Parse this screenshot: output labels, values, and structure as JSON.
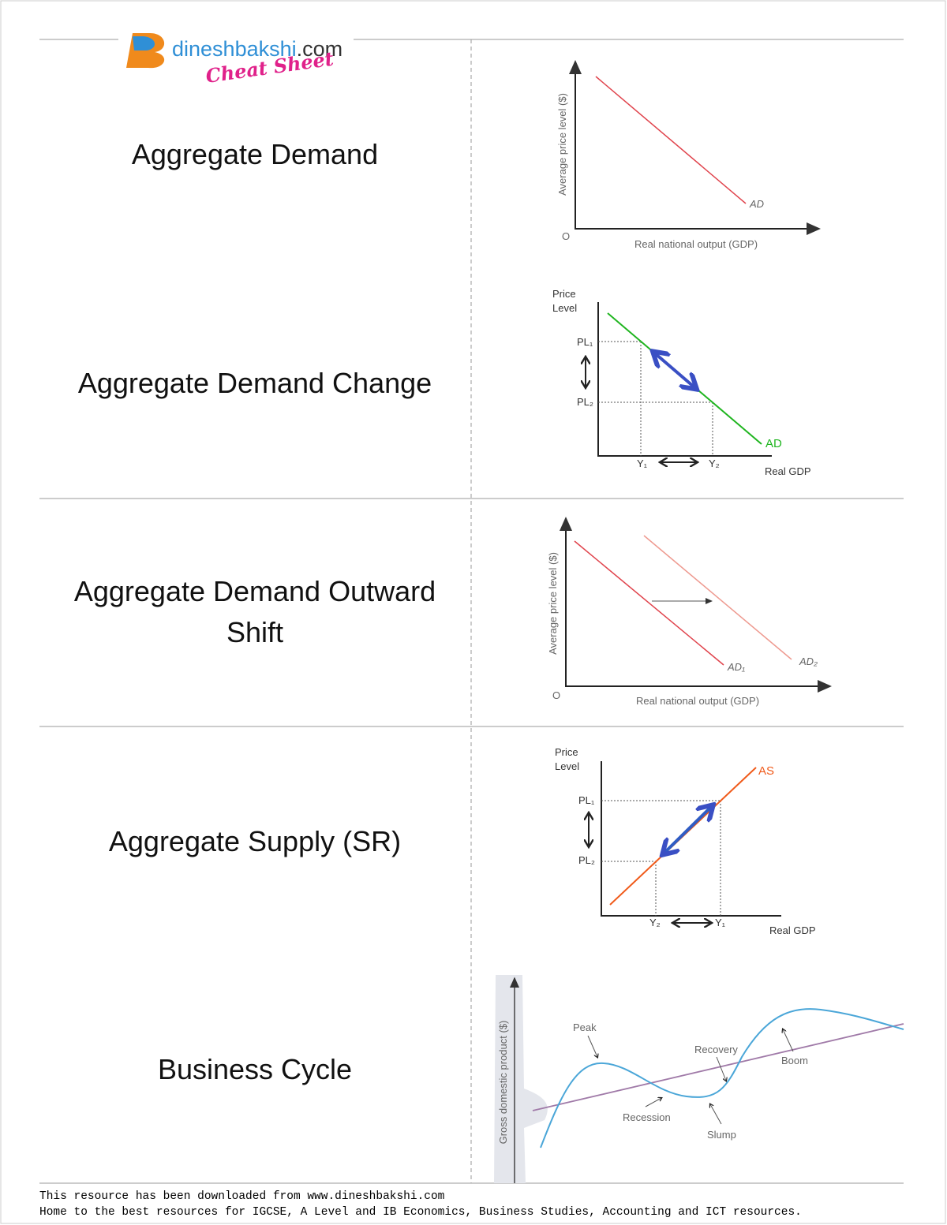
{
  "header": {
    "brand": "dineshbakshi",
    "domain": ".com",
    "tagline": "Cheat Sheet"
  },
  "cards": [
    {
      "term_lines": [
        "Aggregate Demand"
      ],
      "diagram": {
        "y_label": "Average price level ($)",
        "x_label": "Real national output (GDP)",
        "origin": "O",
        "curve_label": "AD"
      }
    },
    {
      "term_lines": [
        "Aggregate Demand Change"
      ],
      "diagram": {
        "y_label_lines": [
          "Price",
          "Level"
        ],
        "pl_1": "PL₁",
        "pl_2": "PL₂",
        "y_1": "Y₁",
        "y_2": "Y₂",
        "curve_label": "AD",
        "x_label": "Real GDP"
      }
    },
    {
      "term_lines": [
        "Aggregate Demand Outward",
        "Shift"
      ],
      "diagram": {
        "y_label": "Average price level ($)",
        "x_label": "Real national output (GDP)",
        "origin": "O",
        "curve_1": "AD₁",
        "curve_2": "AD₂"
      }
    },
    {
      "term_lines": [
        "Aggregate Supply (SR)"
      ],
      "diagram": {
        "y_label_lines": [
          "Price",
          "Level"
        ],
        "pl_1": "PL₁",
        "pl_2": "PL₂",
        "y_1": "Y₁",
        "y_2": "Y₂",
        "curve_label": "AS",
        "x_label": "Real GDP"
      }
    },
    {
      "term_lines": [
        "Business Cycle"
      ],
      "diagram": {
        "y_label": "Gross domestic product ($)",
        "peak": "Peak",
        "recovery": "Recovery",
        "boom": "Boom",
        "recession": "Recession",
        "slump": "Slump"
      }
    }
  ],
  "footer": {
    "line_1": "This resource has been downloaded from www.dineshbakshi.com",
    "line_2": "Home to the best resources for IGCSE, A Level and IB Economics, Business Studies, Accounting and ICT resources."
  }
}
